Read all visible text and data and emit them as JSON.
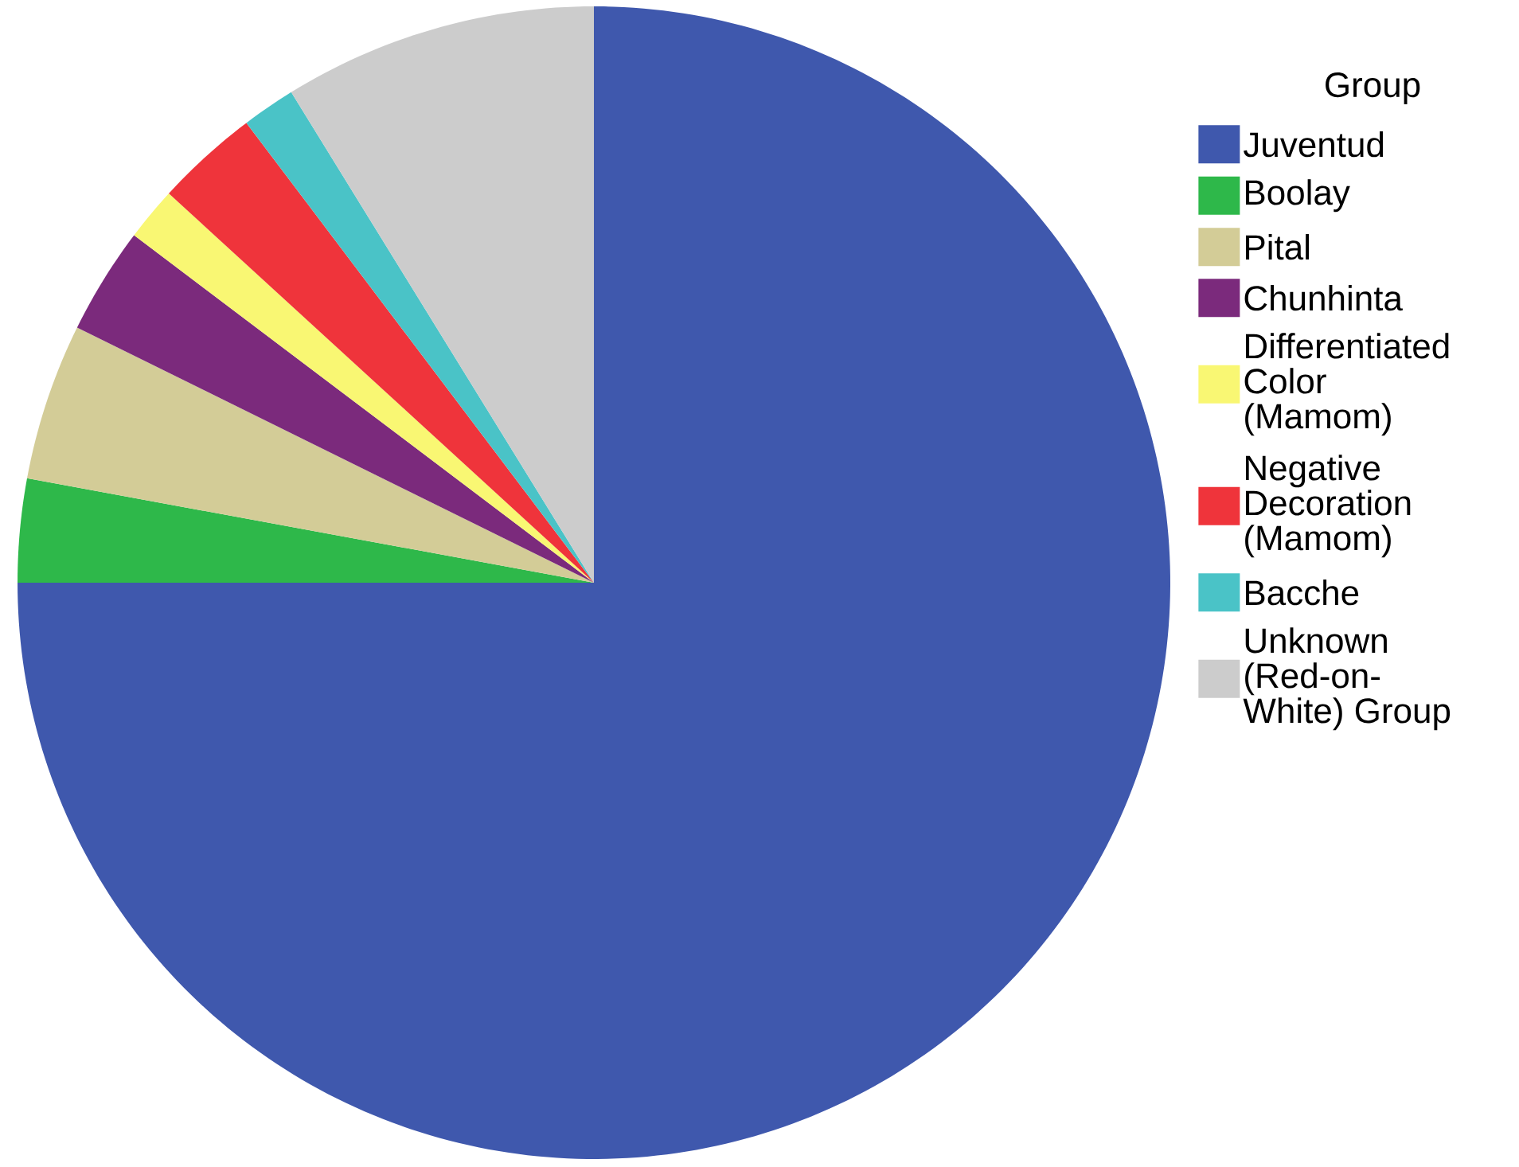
{
  "chart_data": {
    "type": "pie",
    "legend_title": "Group",
    "legend": "right",
    "categories": [
      "Juventud",
      "Boolay",
      "Pital",
      "Chunhinta",
      "Differentiated Color (Mamom)",
      "Negative Decoration (Mamom)",
      "Bacche",
      "Unknown (Red-on-White) Group"
    ],
    "values": [
      75,
      2.9,
      4.4,
      3.0,
      1.5,
      2.9,
      1.5,
      8.8
    ],
    "colors": [
      "#3f58ad",
      "#2eb84a",
      "#d3cc97",
      "#7b2a7c",
      "#f9f773",
      "#ef343b",
      "#4ac3c7",
      "#cccccc"
    ]
  }
}
